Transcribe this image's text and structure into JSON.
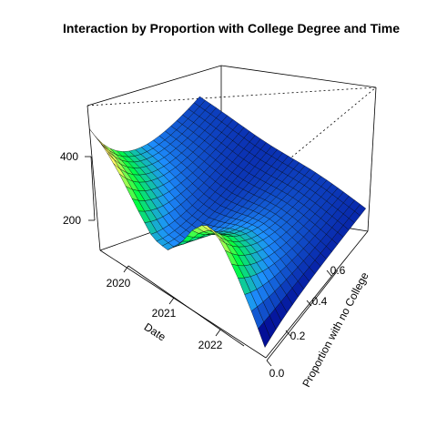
{
  "chart_data": {
    "type": "surface3d",
    "title": "Interaction by Proportion with College Degree and Time",
    "xlabel": "Date",
    "ylabel": "Proportion with no College",
    "zlabel": "",
    "x_ticks": [
      "2020",
      "2021",
      "2022"
    ],
    "y_ticks": [
      "0.0",
      "0.2",
      "0.4",
      "0.6"
    ],
    "z_ticks": [
      "200",
      "400"
    ],
    "xlim": [
      2020,
      2022.9
    ],
    "ylim": [
      0.0,
      0.72
    ],
    "zlim": [
      0,
      560
    ],
    "box": true,
    "colormap": [
      "#00008b",
      "#1e90ff",
      "#00ff40",
      "#ffff60",
      "#ffd27f"
    ],
    "surface_profile": {
      "x": [
        2020.0,
        2020.25,
        2020.5,
        2020.75,
        2021.0,
        2021.25,
        2021.5,
        2021.75,
        2022.0,
        2022.25,
        2022.5,
        2022.75,
        2022.9
      ],
      "z_at_proportion_0": [
        470,
        430,
        360,
        270,
        190,
        180,
        240,
        330,
        390,
        360,
        260,
        130,
        40
      ]
    }
  }
}
